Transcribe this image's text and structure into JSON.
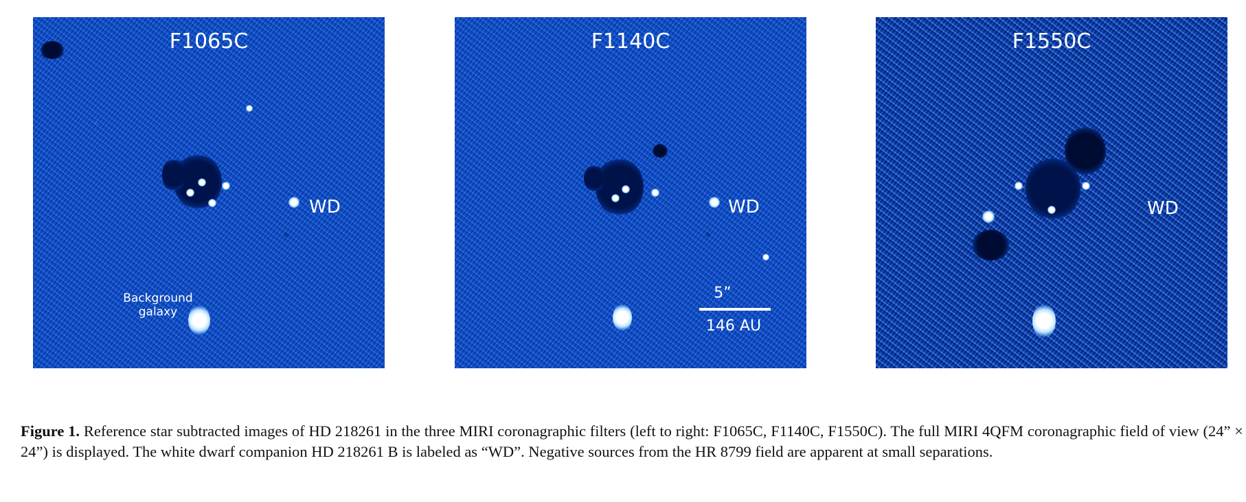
{
  "panels": [
    {
      "filter": "F1065C",
      "wd_label": "WD",
      "galaxy_label_line1": "Background",
      "galaxy_label_line2": "galaxy"
    },
    {
      "filter": "F1140C",
      "wd_label": "WD",
      "scale_top": "5”",
      "scale_bottom": "146 AU"
    },
    {
      "filter": "F1550C",
      "wd_label": "WD"
    }
  ],
  "caption": {
    "label": "Figure 1.",
    "text": " Reference star subtracted images of HD 218261 in the three MIRI coronagraphic filters (left to right: F1065C, F1140C, F1550C). The full MIRI 4QFM coronagraphic field of view (24” × 24”) is displayed. The white dwarf companion HD 218261 B is labeled as “WD”. Negative sources from the HR 8799 field are apparent at small separations."
  },
  "colors": {
    "image_blue": "#1257d8",
    "label_white": "#ffffff"
  }
}
